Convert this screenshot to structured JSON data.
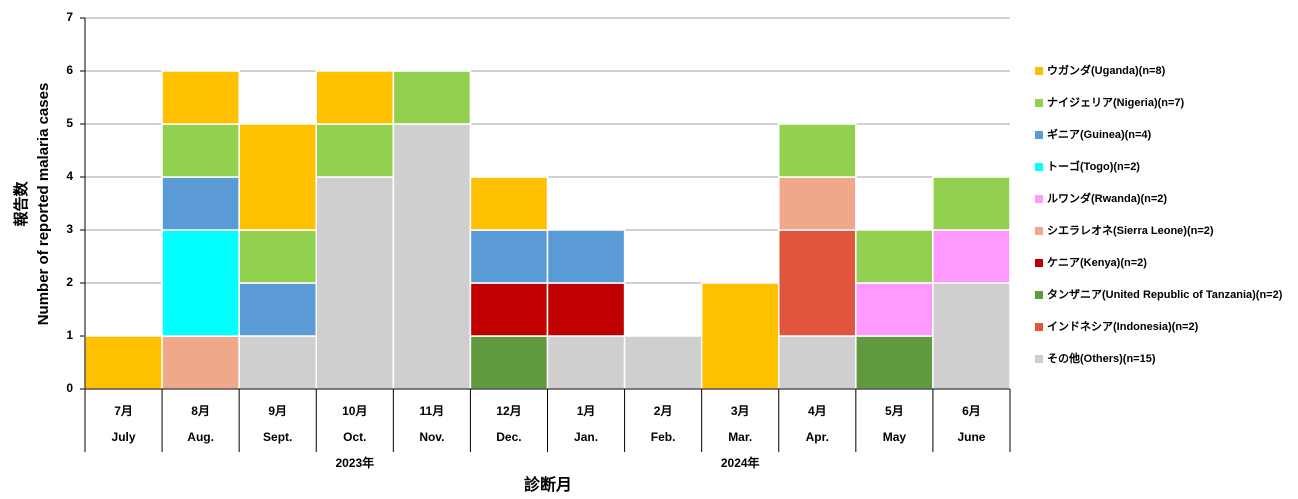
{
  "chart_data": {
    "type": "stacked_bar",
    "y_label_ja": "報告数",
    "y_label": "Number of reported malaria cases",
    "x_label": "診断月",
    "categories": [
      "7月",
      "8月",
      "9月",
      "10月",
      "11月",
      "12月",
      "1月",
      "2月",
      "3月",
      "4月",
      "5月",
      "6月"
    ],
    "categories_en": [
      "July",
      "Aug.",
      "Sept.",
      "Oct.",
      "Nov.",
      "Dec.",
      "Jan.",
      "Feb.",
      "Mar.",
      "Apr.",
      "May",
      "June"
    ],
    "years": [
      "2023年",
      "2024年"
    ],
    "ylim": [
      0,
      7
    ],
    "yticks": [
      0,
      1,
      2,
      3,
      4,
      5,
      6,
      7
    ],
    "grid": true,
    "legend": "right",
    "stack_order": [
      7,
      9,
      8,
      5,
      3,
      6,
      4,
      2,
      1,
      0
    ],
    "series": [
      {
        "name": "ウガンダ(Uganda)(n=8)",
        "color": "#ffc000",
        "values": [
          1,
          1,
          2,
          1,
          null,
          1,
          null,
          null,
          2,
          null,
          null,
          null
        ]
      },
      {
        "name": "ナイジェリア(Nigeria)(n=7)",
        "color": "#92d050",
        "values": [
          null,
          1,
          1,
          1,
          1,
          null,
          null,
          null,
          null,
          1,
          1,
          1
        ]
      },
      {
        "name": "ギニア(Guinea)(n=4)",
        "color": "#5b9bd5",
        "values": [
          null,
          1,
          1,
          null,
          null,
          1,
          1,
          null,
          null,
          null,
          null,
          null
        ]
      },
      {
        "name": "トーゴ(Togo)(n=2)",
        "color": "#00ffff",
        "values": [
          null,
          2,
          null,
          null,
          null,
          null,
          null,
          null,
          null,
          null,
          null,
          null
        ]
      },
      {
        "name": "ルワンダ(Rwanda)(n=2)",
        "color": "#ff99ff",
        "values": [
          null,
          null,
          null,
          null,
          null,
          null,
          null,
          null,
          null,
          null,
          1,
          1
        ]
      },
      {
        "name": "シエラレオネ(Sierra Leone)(n=2)",
        "color": "#f0a88a",
        "values": [
          null,
          1,
          null,
          null,
          null,
          null,
          null,
          null,
          null,
          1,
          null,
          null
        ]
      },
      {
        "name": "ケニア(Kenya)(n=2)",
        "color": "#c00000",
        "values": [
          null,
          null,
          null,
          null,
          null,
          1,
          1,
          null,
          null,
          null,
          null,
          null
        ]
      },
      {
        "name": "タンザニア(United Republic of Tanzania)(n=2)",
        "color": "#5f9a3e",
        "values": [
          null,
          null,
          null,
          null,
          null,
          1,
          null,
          null,
          null,
          null,
          1,
          null
        ]
      },
      {
        "name": "インドネシア(Indonesia)(n=2)",
        "color": "#e0553c",
        "values": [
          null,
          null,
          null,
          null,
          null,
          null,
          null,
          null,
          null,
          2,
          null,
          null
        ]
      },
      {
        "name": "その他(Others)(n=15)",
        "color": "#d0cece",
        "values": [
          null,
          null,
          1,
          4,
          5,
          null,
          1,
          1,
          null,
          1,
          null,
          2
        ]
      }
    ]
  }
}
